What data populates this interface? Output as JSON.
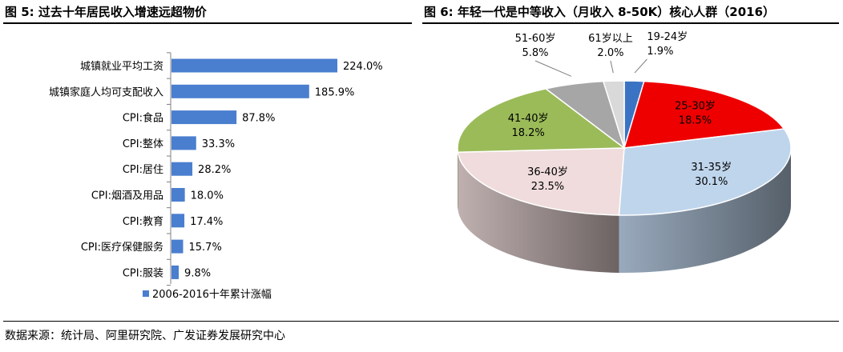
{
  "left_title": "图 5:  过去十年居民收入增速远超物价",
  "right_title": "图 6: 年轻一代是中等收入（月收入 8-50K）核心人群（2016）",
  "source": "数据来源：统计局、阿里研究院、广发证券发展研究中心",
  "colors": {
    "bar": "#4a7ecf",
    "pie": [
      "#3b73c4",
      "#ee0000",
      "#bfd5ec",
      "#f0dcdc",
      "#9bbb59",
      "#a6a6a6",
      "#d9d9d9"
    ]
  },
  "chart_data": [
    {
      "type": "bar",
      "orientation": "horizontal",
      "categories": [
        "城镇就业平均工资",
        "城镇家庭人均可支配收入",
        "CPI:食品",
        "CPI:整体",
        "CPI:居住",
        "CPI:烟酒及用品",
        "CPI:教育",
        "CPI:医疗保健服务",
        "CPI:服装"
      ],
      "values": [
        224.0,
        185.9,
        87.8,
        33.3,
        28.2,
        18.0,
        17.4,
        15.7,
        9.8
      ],
      "value_labels": [
        "224.0%",
        "185.9%",
        "87.8%",
        "33.3%",
        "28.2%",
        "18.0%",
        "17.4%",
        "15.7%",
        "9.8%"
      ],
      "legend": "2006-2016十年累计涨幅",
      "legend_position": "bottom"
    },
    {
      "type": "pie",
      "style": "3d",
      "slices": [
        {
          "label": "19-24岁",
          "value": 1.9,
          "value_label": "1.9%"
        },
        {
          "label": "25-30岁",
          "value": 18.5,
          "value_label": "18.5%"
        },
        {
          "label": "31-35岁",
          "value": 30.1,
          "value_label": "30.1%"
        },
        {
          "label": "36-40岁",
          "value": 23.5,
          "value_label": "23.5%"
        },
        {
          "label": "41-40岁",
          "value": 18.2,
          "value_label": "18.2%"
        },
        {
          "label": "51-60岁",
          "value": 5.8,
          "value_label": "5.8%"
        },
        {
          "label": "61岁以上",
          "value": 2.0,
          "value_label": "2.0%"
        }
      ]
    }
  ]
}
